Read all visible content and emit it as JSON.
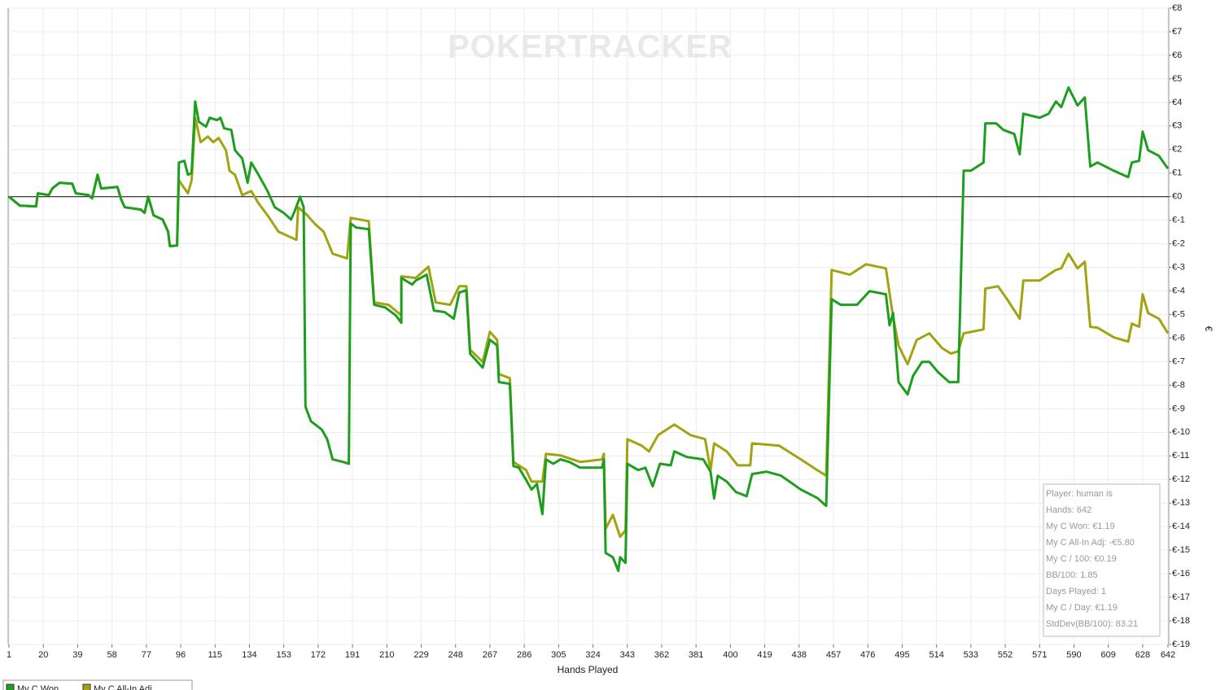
{
  "chart_data": {
    "type": "line",
    "watermark": "POKERTRACKER",
    "x_label": "Hands Played",
    "y_label": "€",
    "xlim": [
      1,
      642
    ],
    "ylim": [
      -19,
      8
    ],
    "xticks": [
      1,
      20,
      39,
      58,
      77,
      96,
      115,
      134,
      153,
      172,
      191,
      210,
      229,
      248,
      267,
      286,
      305,
      324,
      343,
      362,
      381,
      400,
      419,
      438,
      457,
      476,
      495,
      514,
      533,
      552,
      571,
      590,
      609,
      628,
      642
    ],
    "yticks": [
      {
        "value": 8,
        "label": "€8"
      },
      {
        "value": 7,
        "label": "€7"
      },
      {
        "value": 6,
        "label": "€6"
      },
      {
        "value": 5,
        "label": "€5"
      },
      {
        "value": 4,
        "label": "€4"
      },
      {
        "value": 3,
        "label": "€3"
      },
      {
        "value": 2,
        "label": "€2"
      },
      {
        "value": 1,
        "label": "€1"
      },
      {
        "value": 0,
        "label": "€0"
      },
      {
        "value": -1,
        "label": "€-1"
      },
      {
        "value": -2,
        "label": "€-2"
      },
      {
        "value": -3,
        "label": "€-3"
      },
      {
        "value": -4,
        "label": "€-4"
      },
      {
        "value": -5,
        "label": "€-5"
      },
      {
        "value": -6,
        "label": "€-6"
      },
      {
        "value": -7,
        "label": "€-7"
      },
      {
        "value": -8,
        "label": "€-8"
      },
      {
        "value": -9,
        "label": "€-9"
      },
      {
        "value": -10,
        "label": "€-10"
      },
      {
        "value": -11,
        "label": "€-11"
      },
      {
        "value": -12,
        "label": "€-12"
      },
      {
        "value": -13,
        "label": "€-13"
      },
      {
        "value": -14,
        "label": "€-14"
      },
      {
        "value": -15,
        "label": "€-15"
      },
      {
        "value": -16,
        "label": "€-16"
      },
      {
        "value": -17,
        "label": "€-17"
      },
      {
        "value": -18,
        "label": "€-18"
      },
      {
        "value": -19,
        "label": "€-19"
      }
    ],
    "grid": true,
    "series": [
      {
        "name": "My C Won",
        "color": "#1e9e1e",
        "x": [
          1,
          7,
          16,
          17,
          23,
          25,
          29,
          36,
          38,
          45,
          47,
          50,
          52,
          61,
          63,
          65,
          74,
          76,
          78,
          81,
          86,
          89,
          90,
          94,
          95,
          98,
          100,
          102,
          104,
          106,
          110,
          112,
          116,
          118,
          120,
          124,
          126,
          130,
          133,
          135,
          139,
          144,
          148,
          153,
          157,
          159,
          162,
          164,
          165,
          168,
          174,
          177,
          180,
          186,
          189,
          190,
          193,
          200,
          203,
          209,
          215,
          218,
          218,
          224,
          226,
          232,
          236,
          242,
          247,
          250,
          254,
          256,
          263,
          267,
          271,
          272,
          278,
          280,
          283,
          287,
          290,
          293,
          296,
          298,
          302,
          306,
          311,
          317,
          329,
          330,
          331,
          335,
          338,
          339,
          342,
          343,
          349,
          353,
          357,
          361,
          367,
          369,
          376,
          385,
          389,
          391,
          393,
          398,
          403,
          409,
          412,
          420,
          428,
          439,
          448,
          453,
          456,
          461,
          470,
          477,
          486,
          488,
          490,
          493,
          498,
          501,
          506,
          510,
          515,
          521,
          526,
          529,
          533,
          540,
          541,
          547,
          551,
          557,
          560,
          562,
          571,
          576,
          580,
          583,
          587,
          592,
          596,
          599,
          603,
          612,
          620,
          622,
          626,
          628,
          631,
          637,
          642
        ],
        "values": [
          0,
          -0.38,
          -0.41,
          0.14,
          0.07,
          0.35,
          0.59,
          0.55,
          0.14,
          0.07,
          -0.07,
          0.93,
          0.35,
          0.41,
          -0.1,
          -0.45,
          -0.55,
          -0.69,
          0,
          -0.79,
          -0.97,
          -1.48,
          -2.1,
          -2.07,
          1.45,
          1.52,
          0.93,
          1.0,
          4.04,
          3.18,
          2.97,
          3.35,
          3.25,
          3.35,
          2.9,
          2.83,
          1.97,
          1.62,
          0.59,
          1.45,
          0.93,
          0.24,
          -0.45,
          -0.69,
          -0.97,
          -0.62,
          0,
          -0.45,
          -8.91,
          -9.53,
          -9.88,
          -10.29,
          -11.15,
          -11.26,
          -11.33,
          -1.14,
          -1.31,
          -1.38,
          -4.59,
          -4.7,
          -5.04,
          -5.35,
          -3.45,
          -3.73,
          -3.56,
          -3.31,
          -4.83,
          -4.9,
          -5.18,
          -4.07,
          -3.97,
          -6.66,
          -7.25,
          -6.07,
          -6.32,
          -7.87,
          -7.94,
          -11.43,
          -11.5,
          -12.02,
          -12.43,
          -12.19,
          -13.47,
          -11.15,
          -11.33,
          -11.15,
          -11.26,
          -11.5,
          -11.5,
          -11.15,
          -15.12,
          -15.3,
          -15.88,
          -15.3,
          -15.54,
          -11.33,
          -11.6,
          -11.5,
          -12.29,
          -11.33,
          -11.4,
          -10.81,
          -11.05,
          -11.15,
          -11.67,
          -12.81,
          -11.84,
          -12.09,
          -12.53,
          -12.71,
          -11.77,
          -11.67,
          -11.84,
          -12.43,
          -12.78,
          -13.12,
          -4.35,
          -4.59,
          -4.59,
          -4.01,
          -4.14,
          -5.46,
          -4.94,
          -7.87,
          -8.39,
          -7.6,
          -7.01,
          -7.01,
          -7.46,
          -7.87,
          -7.87,
          1.1,
          1.1,
          1.45,
          3.11,
          3.11,
          2.83,
          2.66,
          1.8,
          3.52,
          3.35,
          3.52,
          4.04,
          3.8,
          4.63,
          3.87,
          4.21,
          1.28,
          1.45,
          1.1,
          0.83,
          1.45,
          1.52,
          2.76,
          1.97,
          1.73,
          1.19
        ]
      },
      {
        "name": "My C All-In Adj",
        "color": "#a3a312",
        "x": [
          1,
          7,
          16,
          17,
          23,
          25,
          29,
          36,
          38,
          45,
          47,
          50,
          52,
          61,
          63,
          65,
          74,
          76,
          78,
          81,
          86,
          89,
          90,
          94,
          95,
          100,
          102,
          104,
          107,
          111,
          114,
          117,
          121,
          123,
          126,
          130,
          135,
          139,
          144,
          150,
          157,
          160,
          161,
          166,
          170,
          175,
          180,
          188,
          190,
          200,
          203,
          211,
          218,
          218,
          226,
          233,
          237,
          245,
          250,
          254,
          256,
          263,
          267,
          271,
          272,
          278,
          280,
          287,
          290,
          296,
          298,
          306,
          317,
          329,
          330,
          331,
          335,
          339,
          342,
          343,
          351,
          355,
          360,
          369,
          378,
          386,
          389,
          391,
          398,
          404,
          411,
          412,
          427,
          439,
          448,
          453,
          456,
          466,
          475,
          486,
          490,
          493,
          498,
          503,
          510,
          517,
          522,
          526,
          529,
          540,
          541,
          548,
          553,
          560,
          562,
          571,
          580,
          583,
          587,
          592,
          596,
          599,
          603,
          612,
          620,
          622,
          626,
          628,
          631,
          637,
          642
        ],
        "values": [
          0,
          -0.38,
          -0.41,
          0.14,
          0.07,
          0.35,
          0.59,
          0.55,
          0.14,
          0.07,
          -0.07,
          0.93,
          0.35,
          0.41,
          -0.1,
          -0.45,
          -0.55,
          -0.69,
          0,
          -0.79,
          -0.97,
          -1.48,
          -2.1,
          -2.07,
          0.69,
          0.14,
          0.69,
          3.35,
          2.31,
          2.55,
          2.31,
          2.49,
          1.97,
          1.1,
          0.93,
          0.07,
          0.24,
          -0.28,
          -0.79,
          -1.48,
          -1.73,
          -1.83,
          -0.45,
          -0.79,
          -1.14,
          -1.48,
          -2.42,
          -2.62,
          -0.9,
          -1.04,
          -4.49,
          -4.59,
          -5.04,
          -3.38,
          -3.45,
          -2.97,
          -4.49,
          -4.59,
          -3.8,
          -3.8,
          -6.49,
          -7.01,
          -5.73,
          -6.08,
          -7.53,
          -7.7,
          -11.26,
          -11.6,
          -12.09,
          -12.09,
          -10.91,
          -10.98,
          -11.26,
          -11.15,
          -10.91,
          -14.09,
          -13.5,
          -14.43,
          -14.16,
          -10.29,
          -10.57,
          -10.81,
          -10.12,
          -9.67,
          -10.12,
          -10.29,
          -11.6,
          -10.47,
          -10.81,
          -11.4,
          -11.4,
          -10.47,
          -10.57,
          -11.15,
          -11.6,
          -11.84,
          -3.11,
          -3.31,
          -2.87,
          -3.04,
          -5.11,
          -6.32,
          -7.11,
          -6.08,
          -5.8,
          -6.42,
          -6.66,
          -6.56,
          -5.8,
          -5.63,
          -3.9,
          -3.8,
          -4.35,
          -5.18,
          -3.56,
          -3.56,
          -3.11,
          -3.04,
          -2.42,
          -3.04,
          -2.76,
          -5.52,
          -5.56,
          -5.97,
          -6.15,
          -5.39,
          -5.52,
          -4.14,
          -4.94,
          -5.18,
          -5.8
        ]
      }
    ],
    "stats": [
      "Player: human is",
      "Hands: 642",
      "My C Won: €1.19",
      "My C All-In Adj: -€5.80",
      "My C / 100: €0.19",
      "BB/100: 1.85",
      "Days Played: 1",
      "My C / Day: €1.19",
      "StdDev(BB/100): 83.21"
    ]
  }
}
